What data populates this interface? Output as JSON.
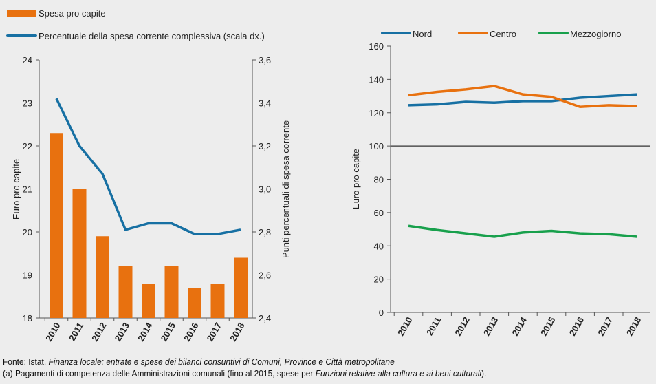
{
  "colors": {
    "orange": "#e8710f",
    "blue": "#1770a3",
    "green": "#18a04c",
    "axis": "#555555"
  },
  "chart_data": [
    {
      "type": "bar+line",
      "categories": [
        "2010",
        "2011",
        "2012",
        "2013",
        "2014",
        "2015",
        "2016",
        "2017",
        "2018"
      ],
      "legend": [
        "Spesa pro capite",
        "Percentuale della spesa corrente complessiva (scala dx.)"
      ],
      "legend_placement": "top-left",
      "ylabel": "Euro pro capite",
      "ylabel_right": "Punti percentuali di spesa corrente",
      "ylim": [
        18,
        24
      ],
      "ylim_right": [
        2.4,
        3.6
      ],
      "yticks": [
        "18",
        "19",
        "20",
        "21",
        "22",
        "23",
        "24"
      ],
      "yticks_right": [
        "2,4",
        "2,6",
        "2,8",
        "3,0",
        "3,2",
        "3,4",
        "3,6"
      ],
      "series": [
        {
          "name": "Spesa pro capite",
          "type": "bar",
          "axis": "left",
          "values": [
            22.3,
            21.0,
            19.9,
            19.2,
            18.8,
            19.2,
            18.7,
            18.8,
            19.4
          ]
        },
        {
          "name": "Percentuale della spesa corrente complessiva (scala dx.)",
          "type": "line",
          "axis": "right",
          "values": [
            3.42,
            3.2,
            3.07,
            2.81,
            2.84,
            2.84,
            2.79,
            2.79,
            2.81
          ]
        }
      ],
      "grid": false
    },
    {
      "type": "line",
      "categories": [
        "2010",
        "2011",
        "2012",
        "2013",
        "2014",
        "2015",
        "2016",
        "2017",
        "2018"
      ],
      "legend_placement": "top",
      "ylabel": "Euro pro capite",
      "ylim": [
        0,
        160
      ],
      "yticks": [
        "0",
        "20",
        "40",
        "60",
        "80",
        "100",
        "120",
        "140",
        "160"
      ],
      "reference_line": 100,
      "series": [
        {
          "name": "Nord",
          "values": [
            124.5,
            125,
            126.5,
            126,
            127,
            127,
            129,
            130,
            131
          ]
        },
        {
          "name": "Centro",
          "values": [
            130.5,
            132.5,
            134,
            136,
            131,
            129.5,
            123.5,
            124.5,
            124
          ]
        },
        {
          "name": "Mezzogiorno",
          "values": [
            52,
            49.5,
            47.5,
            45.5,
            48,
            49,
            47.5,
            47,
            45.5
          ]
        }
      ],
      "grid": false
    }
  ],
  "footer": {
    "source_prefix": "Fonte: Istat, ",
    "source_title": "Finanza locale: entrate e spese dei bilanci consuntivi di Comuni, Province e Città metropolitane",
    "note_prefix": "(a) Pagamenti di competenza delle Amministrazioni comunali (fino al 2015, spese per ",
    "note_italic": "Funzioni relative alla cultura e ai beni culturali",
    "note_suffix": ")."
  }
}
